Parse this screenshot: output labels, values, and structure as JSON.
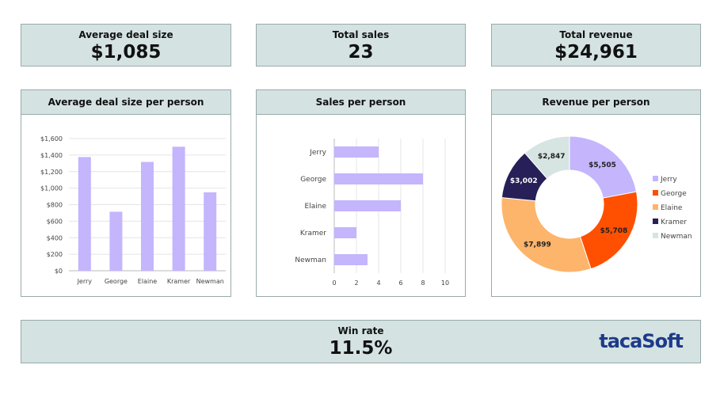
{
  "kpis": {
    "avg_deal": {
      "label": "Average deal size",
      "value": "$1,085"
    },
    "total_sales": {
      "label": "Total sales",
      "value": "23"
    },
    "total_revenue": {
      "label": "Total revenue",
      "value": "$24,961"
    },
    "win_rate": {
      "label": "Win rate",
      "value": "11.5%"
    }
  },
  "logo": "tacaSoft",
  "colors": {
    "bar": "#c4b5fd",
    "header_bg": "#d4e2e2",
    "logo": "#1e3a8a"
  },
  "chart_data": [
    {
      "type": "bar",
      "title": "Average deal size per person",
      "categories": [
        "Jerry",
        "George",
        "Elaine",
        "Kramer",
        "Newman"
      ],
      "values": [
        1376,
        714,
        1317,
        1501,
        949
      ],
      "ylim": [
        0,
        1600
      ],
      "yticks": [
        "$0",
        "$200",
        "$400",
        "$600",
        "$800",
        "$1,000",
        "$1,200",
        "$1,400",
        "$1,600"
      ],
      "grid": true
    },
    {
      "type": "bar",
      "orientation": "horizontal",
      "title": "Sales per person",
      "categories": [
        "Jerry",
        "George",
        "Elaine",
        "Kramer",
        "Newman"
      ],
      "values": [
        4,
        8,
        6,
        2,
        3
      ],
      "xlim": [
        0,
        10
      ],
      "xticks": [
        "0",
        "2",
        "4",
        "6",
        "8",
        "10"
      ],
      "grid": true
    },
    {
      "type": "pie",
      "donut": true,
      "title": "Revenue per person",
      "labels": [
        "Jerry",
        "George",
        "Elaine",
        "Kramer",
        "Newman"
      ],
      "values": [
        5505,
        5708,
        7899,
        3002,
        2847
      ],
      "data_labels": [
        "$5,505",
        "$5,708",
        "$7,899",
        "$3,002",
        "$2,847"
      ],
      "colors": [
        "#c4b5fd",
        "#fe5000",
        "#fdb46b",
        "#271f57",
        "#d6e4e2"
      ],
      "legend": "right"
    }
  ]
}
